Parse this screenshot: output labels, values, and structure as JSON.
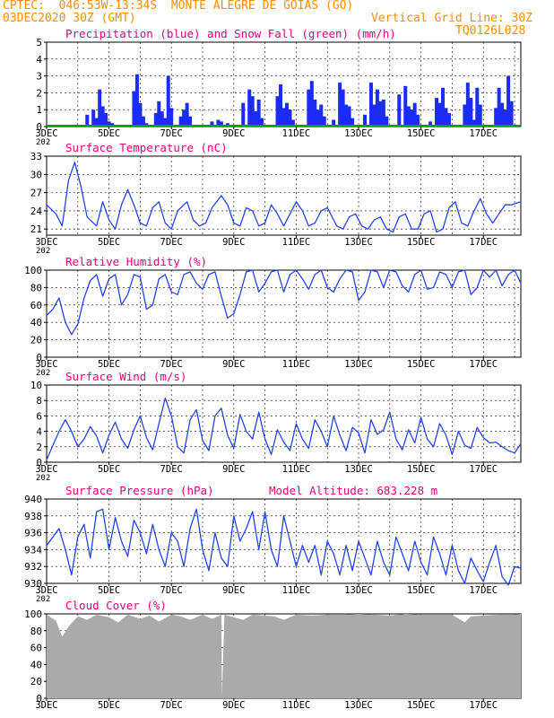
{
  "header": {
    "line1": "CPTEC:  046:53W-13:34S  MONTE ALEGRE DE GOIAS (GO)",
    "line2_left": "03DEC2020 30Z (GMT)",
    "line2_right": "Vertical Grid Line: 30Z",
    "code": "TQ0126L028"
  },
  "colors": {
    "precip": "#1a2cf5",
    "snow": "#00a000",
    "line": "#2244ee",
    "cloud": "#aaaaaa",
    "accent_title": "#e6007e",
    "accent_header": "#ff8c00"
  },
  "x_axis": {
    "labels": [
      "3DEC",
      "5DEC",
      "7DEC",
      "9DEC",
      "11DEC",
      "13DEC",
      "15DEC",
      "17DEC"
    ],
    "days": [
      3,
      5,
      7,
      9,
      11,
      13,
      15,
      17
    ],
    "range_days": [
      3,
      18.2
    ],
    "partial_label": "202"
  },
  "chart_data": [
    {
      "type": "bar",
      "title": "Precipitation (blue) and Snow Fall (green) (mm/h)",
      "ylim": [
        0,
        5
      ],
      "yticks": [
        0,
        1,
        2,
        3,
        4,
        5
      ],
      "series": [
        {
          "name": "Precipitation",
          "x_days": [
            3.2,
            3.5,
            4.3,
            4.5,
            4.6,
            4.7,
            4.8,
            4.9,
            5.0,
            5.1,
            5.8,
            5.9,
            6.0,
            6.1,
            6.2,
            6.5,
            6.6,
            6.7,
            6.8,
            6.9,
            7.0,
            7.3,
            7.4,
            7.5,
            7.6,
            8.3,
            8.5,
            8.6,
            8.8,
            9.3,
            9.5,
            9.6,
            9.7,
            9.8,
            9.9,
            10.4,
            10.5,
            10.6,
            10.7,
            10.8,
            10.9,
            11.4,
            11.5,
            11.6,
            11.7,
            11.8,
            11.9,
            12.2,
            12.4,
            12.5,
            12.6,
            12.7,
            12.8,
            13.2,
            13.4,
            13.5,
            13.6,
            13.7,
            13.8,
            13.9,
            14.3,
            14.5,
            14.6,
            14.7,
            14.8,
            14.9,
            15.3,
            15.5,
            15.6,
            15.7,
            15.8,
            15.9,
            16.4,
            16.5,
            16.6,
            16.7,
            16.8,
            16.9,
            17.4,
            17.5,
            17.6,
            17.7,
            17.8,
            17.9
          ],
          "values": [
            0.1,
            0.1,
            0.7,
            1.0,
            0.5,
            2.2,
            1.2,
            0.8,
            0.3,
            0.2,
            2.1,
            3.1,
            1.4,
            0.6,
            0.2,
            0.8,
            1.5,
            0.9,
            0.5,
            3.0,
            1.1,
            0.6,
            1.0,
            1.4,
            0.6,
            0.3,
            0.4,
            0.3,
            0.2,
            1.4,
            2.2,
            1.8,
            0.9,
            1.6,
            0.5,
            1.8,
            2.5,
            1.1,
            1.4,
            1.0,
            0.4,
            2.2,
            2.7,
            1.6,
            1.0,
            1.3,
            0.6,
            0.4,
            2.6,
            2.2,
            1.3,
            1.2,
            0.5,
            0.7,
            2.6,
            1.3,
            2.2,
            1.5,
            1.6,
            0.6,
            1.9,
            2.4,
            1.2,
            1.0,
            1.4,
            0.7,
            0.3,
            1.7,
            1.4,
            2.3,
            1.1,
            0.8,
            1.3,
            2.6,
            1.7,
            0.4,
            2.3,
            1.3,
            1.1,
            2.3,
            1.4,
            1.0,
            3.0,
            1.5
          ]
        },
        {
          "name": "Snow Fall",
          "x_days": [
            3,
            18.2
          ],
          "values": [
            0,
            0
          ]
        }
      ]
    },
    {
      "type": "line",
      "title": "Surface Temperature (nC)",
      "ylim": [
        20,
        33
      ],
      "yticks": [
        21,
        24,
        27,
        30,
        33
      ],
      "series": [
        {
          "name": "Temperature",
          "x_days": [
            3.0,
            3.3,
            3.5,
            3.7,
            3.9,
            4.1,
            4.3,
            4.6,
            4.8,
            5.0,
            5.2,
            5.4,
            5.6,
            5.8,
            6.0,
            6.2,
            6.4,
            6.6,
            6.8,
            7.0,
            7.2,
            7.5,
            7.7,
            7.9,
            8.1,
            8.3,
            8.6,
            8.8,
            9.0,
            9.2,
            9.4,
            9.6,
            9.8,
            10.0,
            10.2,
            10.4,
            10.6,
            10.8,
            11.0,
            11.2,
            11.4,
            11.6,
            11.8,
            12.0,
            12.3,
            12.5,
            12.7,
            12.9,
            13.1,
            13.3,
            13.5,
            13.7,
            13.9,
            14.1,
            14.3,
            14.5,
            14.7,
            14.9,
            15.1,
            15.3,
            15.5,
            15.7,
            15.9,
            16.1,
            16.3,
            16.5,
            16.7,
            16.9,
            17.1,
            17.3,
            17.5,
            17.7,
            17.9,
            18.2
          ],
          "values": [
            25.0,
            23.5,
            21.5,
            29.0,
            32.0,
            28.0,
            23.0,
            21.5,
            25.5,
            22.5,
            21.0,
            25.0,
            27.5,
            25.0,
            22.0,
            21.5,
            24.5,
            25.5,
            22.0,
            21.0,
            24.0,
            25.5,
            22.5,
            21.5,
            22.0,
            24.5,
            26.5,
            25.0,
            22.0,
            21.5,
            24.5,
            24.0,
            21.5,
            22.0,
            25.0,
            23.5,
            21.5,
            23.5,
            25.5,
            24.0,
            21.5,
            22.0,
            24.0,
            24.5,
            21.5,
            21.0,
            23.0,
            23.5,
            21.5,
            21.0,
            22.5,
            23.0,
            21.0,
            20.5,
            23.0,
            23.5,
            21.0,
            21.0,
            23.5,
            24.0,
            20.5,
            21.0,
            24.5,
            25.5,
            22.0,
            21.5,
            24.0,
            26.0,
            23.5,
            22.0,
            23.5,
            25.0,
            25.0,
            25.5
          ]
        }
      ]
    },
    {
      "type": "line",
      "title": "Relative Humidity (%)",
      "ylim": [
        0,
        100
      ],
      "yticks": [
        0,
        20,
        40,
        60,
        80,
        100
      ],
      "series": [
        {
          "name": "Relative Humidity",
          "x_days": [
            3.0,
            3.2,
            3.4,
            3.6,
            3.8,
            4.0,
            4.2,
            4.4,
            4.6,
            4.8,
            5.0,
            5.2,
            5.4,
            5.6,
            5.8,
            6.0,
            6.2,
            6.4,
            6.6,
            6.8,
            7.0,
            7.2,
            7.4,
            7.6,
            7.8,
            8.0,
            8.2,
            8.4,
            8.6,
            8.8,
            9.0,
            9.2,
            9.4,
            9.6,
            9.8,
            10.0,
            10.2,
            10.4,
            10.6,
            10.8,
            11.0,
            11.2,
            11.4,
            11.6,
            11.8,
            12.0,
            12.2,
            12.4,
            12.6,
            12.8,
            13.0,
            13.2,
            13.4,
            13.6,
            13.8,
            14.0,
            14.2,
            14.4,
            14.6,
            14.8,
            15.0,
            15.2,
            15.4,
            15.6,
            15.8,
            16.0,
            16.2,
            16.4,
            16.6,
            16.8,
            17.0,
            17.2,
            17.4,
            17.6,
            17.8,
            18.0,
            18.2
          ],
          "values": [
            48,
            55,
            68,
            40,
            26,
            38,
            68,
            88,
            95,
            70,
            90,
            95,
            60,
            72,
            95,
            92,
            55,
            60,
            90,
            95,
            75,
            72,
            95,
            98,
            85,
            78,
            95,
            98,
            70,
            45,
            50,
            72,
            98,
            100,
            75,
            85,
            98,
            100,
            75,
            95,
            100,
            90,
            78,
            95,
            100,
            80,
            75,
            90,
            100,
            98,
            65,
            75,
            100,
            98,
            80,
            100,
            98,
            82,
            75,
            95,
            100,
            78,
            80,
            98,
            95,
            80,
            98,
            100,
            72,
            80,
            100,
            92,
            100,
            82,
            95,
            100,
            85
          ]
        }
      ]
    },
    {
      "type": "line",
      "title": "Surface Wind (m/s)",
      "ylim": [
        0,
        10
      ],
      "yticks": [
        0,
        2,
        4,
        6,
        8,
        10
      ],
      "series": [
        {
          "name": "Wind speed",
          "x_days": [
            3.0,
            3.2,
            3.4,
            3.6,
            3.8,
            4.0,
            4.2,
            4.4,
            4.6,
            4.8,
            5.0,
            5.2,
            5.4,
            5.6,
            5.8,
            6.0,
            6.2,
            6.4,
            6.6,
            6.8,
            7.0,
            7.2,
            7.4,
            7.6,
            7.8,
            8.0,
            8.2,
            8.4,
            8.6,
            8.8,
            9.0,
            9.2,
            9.4,
            9.6,
            9.8,
            10.0,
            10.2,
            10.4,
            10.6,
            10.8,
            11.0,
            11.2,
            11.4,
            11.6,
            11.8,
            12.0,
            12.2,
            12.4,
            12.6,
            12.8,
            13.0,
            13.2,
            13.4,
            13.6,
            13.8,
            14.0,
            14.2,
            14.4,
            14.6,
            14.8,
            15.0,
            15.2,
            15.4,
            15.6,
            15.8,
            16.0,
            16.2,
            16.4,
            16.6,
            16.8,
            17.0,
            17.2,
            17.4,
            17.6,
            17.8,
            18.0,
            18.2
          ],
          "values": [
            0.3,
            2.2,
            4.0,
            5.5,
            4.0,
            2.0,
            3.0,
            4.6,
            3.4,
            1.2,
            3.5,
            5.2,
            3.0,
            1.8,
            4.2,
            6.0,
            3.2,
            1.6,
            5.0,
            8.3,
            6.0,
            2.0,
            1.2,
            5.5,
            6.8,
            2.8,
            1.5,
            6.0,
            7.0,
            3.5,
            1.8,
            6.2,
            4.0,
            3.0,
            6.5,
            3.0,
            1.0,
            4.2,
            2.6,
            1.5,
            5.0,
            3.0,
            1.8,
            5.5,
            4.0,
            2.0,
            6.0,
            3.5,
            1.5,
            4.5,
            3.8,
            1.2,
            5.5,
            3.6,
            4.2,
            6.5,
            3.0,
            1.6,
            4.2,
            2.5,
            5.8,
            3.0,
            2.0,
            5.0,
            3.5,
            1.0,
            4.0,
            2.2,
            1.8,
            4.5,
            3.2,
            2.5,
            2.6,
            2.0,
            1.5,
            1.2,
            2.4
          ]
        }
      ]
    },
    {
      "type": "line",
      "title": "Surface Pressure (hPa)",
      "annotation": "Model Altitude: 683.228  m",
      "ylim": [
        930,
        940
      ],
      "yticks": [
        930,
        932,
        934,
        936,
        938,
        940
      ],
      "series": [
        {
          "name": "Pressure",
          "x_days": [
            3.0,
            3.2,
            3.4,
            3.6,
            3.8,
            4.0,
            4.2,
            4.4,
            4.6,
            4.8,
            5.0,
            5.2,
            5.4,
            5.6,
            5.8,
            6.0,
            6.2,
            6.4,
            6.6,
            6.8,
            7.0,
            7.2,
            7.4,
            7.6,
            7.8,
            8.0,
            8.2,
            8.4,
            8.6,
            8.8,
            9.0,
            9.2,
            9.4,
            9.6,
            9.8,
            10.0,
            10.2,
            10.4,
            10.6,
            10.8,
            11.0,
            11.2,
            11.4,
            11.6,
            11.8,
            12.0,
            12.2,
            12.4,
            12.6,
            12.8,
            13.0,
            13.2,
            13.4,
            13.6,
            13.8,
            14.0,
            14.2,
            14.4,
            14.6,
            14.8,
            15.0,
            15.2,
            15.4,
            15.6,
            15.8,
            16.0,
            16.2,
            16.4,
            16.6,
            16.8,
            17.0,
            17.2,
            17.4,
            17.6,
            17.8,
            18.0,
            18.2
          ],
          "values": [
            934.5,
            935.5,
            936.5,
            934.0,
            931.0,
            935.5,
            937.0,
            933.0,
            938.5,
            938.8,
            934.0,
            937.8,
            935.0,
            933.2,
            937.5,
            936.0,
            933.5,
            937.0,
            934.0,
            932.0,
            936.0,
            935.0,
            932.0,
            936.5,
            938.8,
            934.0,
            931.5,
            936.0,
            933.0,
            932.0,
            938.0,
            935.0,
            936.5,
            938.5,
            934.0,
            938.5,
            934.0,
            932.0,
            938.0,
            935.0,
            932.0,
            934.5,
            932.5,
            934.5,
            931.0,
            935.0,
            933.5,
            931.0,
            934.5,
            931.5,
            935.0,
            933.0,
            931.0,
            935.0,
            932.5,
            931.0,
            935.5,
            933.5,
            931.5,
            935.0,
            932.5,
            931.0,
            935.5,
            933.5,
            931.0,
            934.5,
            931.5,
            930.0,
            933.0,
            931.5,
            930.2,
            932.5,
            934.5,
            930.8,
            929.8,
            932.0,
            931.8
          ]
        }
      ]
    },
    {
      "type": "area",
      "title": "Cloud Cover (%)",
      "ylim": [
        0,
        100
      ],
      "yticks": [
        0,
        20,
        40,
        60,
        80,
        100
      ],
      "series": [
        {
          "name": "Cloud Cover",
          "x_days": [
            3.0,
            3.3,
            3.5,
            3.7,
            4.0,
            4.3,
            4.6,
            5.0,
            5.3,
            5.6,
            6.0,
            6.3,
            6.6,
            7.0,
            7.3,
            7.6,
            8.0,
            8.3,
            8.6,
            8.62,
            8.7,
            9.0,
            9.3,
            9.6,
            10.0,
            10.3,
            10.6,
            11.0,
            11.5,
            12.0,
            12.5,
            13.0,
            13.5,
            14.0,
            14.5,
            15.0,
            15.5,
            16.0,
            16.4,
            16.6,
            17.0,
            17.5,
            18.0,
            18.2
          ],
          "values": [
            99,
            92,
            73,
            85,
            97,
            93,
            99,
            96,
            90,
            99,
            94,
            98,
            91,
            99,
            97,
            93,
            99,
            94,
            99,
            3,
            99,
            96,
            93,
            99,
            98,
            97,
            93,
            99,
            98,
            99,
            99,
            100,
            99,
            98,
            100,
            99,
            99,
            99,
            90,
            97,
            98,
            99,
            99,
            100
          ]
        }
      ]
    }
  ]
}
